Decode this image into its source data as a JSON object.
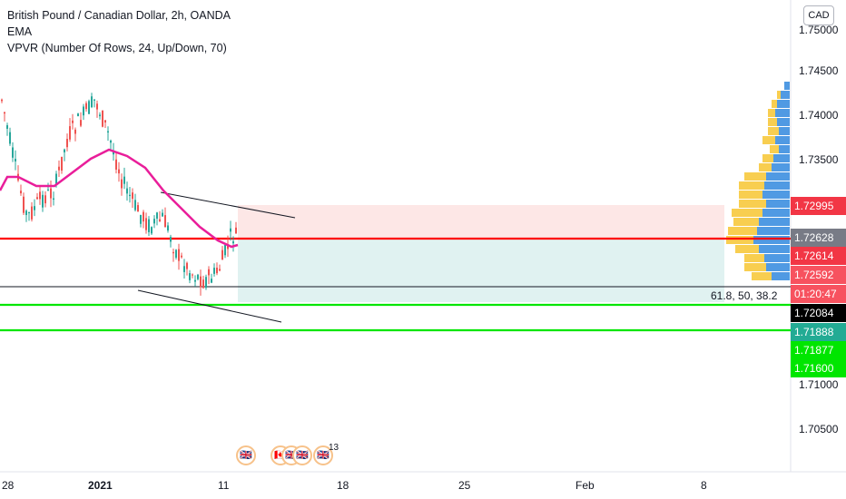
{
  "legend": {
    "title": "British Pound / Canadian Dollar, 2h, OANDA",
    "indicator1": "EMA",
    "indicator2": "VPVR (Number Of Rows, 24, Up/Down, 70)"
  },
  "currency_button": "CAD",
  "price_axis": {
    "ticks": [
      "1.75000",
      "1.74500",
      "1.74000",
      "1.73500",
      "1.71000",
      "1.70500"
    ]
  },
  "price_tags": [
    {
      "label": "1.72995",
      "color": "#f23645"
    },
    {
      "label": "1.72628",
      "color": "#787b86"
    },
    {
      "label": "1.72614",
      "color": "#f23645"
    },
    {
      "label": "1.72592",
      "color": "#f7525f"
    },
    {
      "label": "01:20:47",
      "color": "#f7525f"
    },
    {
      "label": "1.72084",
      "color": "#000000"
    },
    {
      "label": "1.71888",
      "color": "#22ab94"
    },
    {
      "label": "1.71877",
      "color": "#00e600"
    },
    {
      "label": "1.71600",
      "color": "#00e600"
    }
  ],
  "time_axis": {
    "labels": [
      {
        "text": "28",
        "bold": false
      },
      {
        "text": "2021",
        "bold": true
      },
      {
        "text": "11",
        "bold": false
      },
      {
        "text": "18",
        "bold": false
      },
      {
        "text": "25",
        "bold": false
      },
      {
        "text": "Feb",
        "bold": false
      },
      {
        "text": "8",
        "bold": false
      }
    ]
  },
  "fib_label": "61.8, 50, 38.2",
  "events": {
    "icons": [
      "uk-flag-icon",
      "canada-flag-icon",
      "uk-flag-icon",
      "uk-flag-icon",
      "uk-flag-icon"
    ],
    "count": "13"
  },
  "colors": {
    "up": "#26a69a",
    "down": "#ef5350",
    "ema": "#e91e9a",
    "support": "#00e600",
    "resistance": "#ff0000",
    "profit_zone": "#ef5350",
    "loss_zone": "#26a69a"
  }
}
